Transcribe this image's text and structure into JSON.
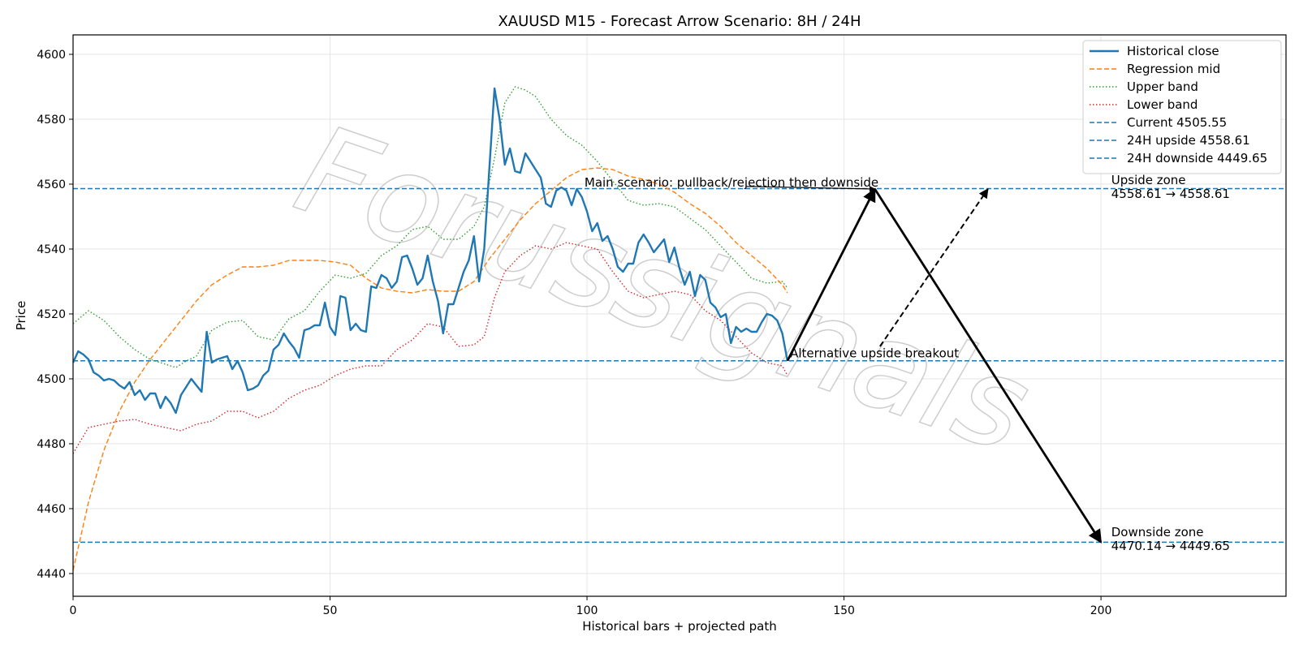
{
  "chart_data": {
    "type": "line",
    "title": "XAUUSD M15 - Forecast Arrow Scenario: 8H / 24H",
    "xlabel": "Historical bars + projected path",
    "ylabel": "Price",
    "xlim": [
      0,
      236
    ],
    "ylim": [
      4433,
      4606
    ],
    "xticks": [
      0,
      50,
      100,
      150,
      200
    ],
    "yticks": [
      4440,
      4460,
      4480,
      4500,
      4520,
      4540,
      4560,
      4580,
      4600
    ],
    "grid": true,
    "legend_position": "top-right",
    "watermark": "Forussignals",
    "series": [
      {
        "name": "Historical close",
        "style": "solid",
        "color": "#1f77b4",
        "x": [
          0,
          1,
          2,
          3,
          4,
          5,
          6,
          7,
          8,
          9,
          10,
          11,
          12,
          13,
          14,
          15,
          16,
          17,
          18,
          19,
          20,
          21,
          22,
          23,
          24,
          25,
          26,
          27,
          28,
          29,
          30,
          31,
          32,
          33,
          34,
          35,
          36,
          37,
          38,
          39,
          40,
          41,
          42,
          43,
          44,
          45,
          46,
          47,
          48,
          49,
          50,
          51,
          52,
          53,
          54,
          55,
          56,
          57,
          58,
          59,
          60,
          61,
          62,
          63,
          64,
          65,
          66,
          67,
          68,
          69,
          70,
          71,
          72,
          73,
          74,
          75,
          76,
          77,
          78,
          79,
          80,
          81,
          82,
          83,
          84,
          85,
          86,
          87,
          88,
          89,
          90,
          91,
          92,
          93,
          94,
          95,
          96,
          97,
          98,
          99,
          100,
          101,
          102,
          103,
          104,
          105,
          106,
          107,
          108,
          109,
          110,
          111,
          112,
          113,
          114,
          115,
          116,
          117,
          118,
          119,
          120,
          121,
          122,
          123,
          124,
          125,
          126,
          127,
          128,
          129,
          130,
          131,
          132,
          133,
          134,
          135,
          136,
          137,
          138,
          139
        ],
        "values": [
          4505,
          4508.5,
          4507.5,
          4506,
          4502,
          4501,
          4499.5,
          4500,
          4499.5,
          4498,
          4497,
          4499,
          4495,
          4496.5,
          4493.5,
          4495.5,
          4495.5,
          4491,
          4494.5,
          4492.5,
          4489.5,
          4495,
          4497.5,
          4500,
          4498,
          4496,
          4514.5,
          4505,
          4506,
          4506.5,
          4507,
          4503,
          4505.5,
          4502,
          4496.5,
          4497,
          4498,
          4501,
          4502.5,
          4509,
          4510.5,
          4514,
          4511.5,
          4509.5,
          4506.5,
          4515,
          4515.5,
          4516.5,
          4516.5,
          4523.5,
          4516,
          4513.5,
          4525.5,
          4525,
          4515,
          4517,
          4515,
          4514.5,
          4528.5,
          4528,
          4532,
          4531,
          4528,
          4530,
          4537.5,
          4538,
          4534,
          4529,
          4531,
          4538,
          4530,
          4524,
          4514,
          4523,
          4523,
          4528,
          4533,
          4536.5,
          4544,
          4530,
          4540,
          4565,
          4589.5,
          4580,
          4566,
          4571,
          4564,
          4563.5,
          4569.5,
          4567,
          4564.5,
          4562,
          4554,
          4553,
          4558,
          4559,
          4558,
          4553.5,
          4558.5,
          4556,
          4551.5,
          4545.5,
          4548,
          4542.5,
          4544,
          4540,
          4534.5,
          4533,
          4535.5,
          4535.5,
          4542,
          4544.5,
          4542,
          4539,
          4541,
          4543,
          4536,
          4540.5,
          4534,
          4529,
          4533,
          4525.5,
          4532,
          4530.5,
          4523.5,
          4522,
          4519,
          4520,
          4511,
          4516,
          4514.5,
          4515.5,
          4514.5,
          4514.5,
          4517.5,
          4520,
          4519.5,
          4518,
          4514,
          4505.55
        ]
      },
      {
        "name": "Regression mid",
        "style": "dashed",
        "color": "#ff7f0e",
        "x": [
          0,
          3,
          6,
          9,
          12,
          15,
          18,
          21,
          24,
          27,
          30,
          33,
          36,
          39,
          42,
          45,
          48,
          51,
          54,
          57,
          60,
          63,
          66,
          69,
          72,
          75,
          78,
          81,
          84,
          87,
          90,
          93,
          96,
          99,
          102,
          105,
          108,
          111,
          114,
          117,
          120,
          123,
          126,
          129,
          132,
          135,
          138,
          139
        ],
        "values": [
          4441,
          4462,
          4478,
          4490,
          4499,
          4506,
          4512,
          4518,
          4524,
          4529,
          4532,
          4534.5,
          4534.5,
          4535,
          4536.5,
          4536.5,
          4536.5,
          4536,
          4535,
          4531,
          4528,
          4527,
          4526.5,
          4527.5,
          4527,
          4527,
          4530,
          4537,
          4543,
          4549,
          4554,
          4558,
          4562,
          4564.5,
          4565,
          4564.5,
          4562.5,
          4561.5,
          4560,
          4557.5,
          4554,
          4551,
          4547,
          4542,
          4538,
          4534,
          4529,
          4526.5
        ]
      },
      {
        "name": "Upper band",
        "style": "dotted",
        "color": "#2ca02c",
        "x": [
          0,
          3,
          6,
          9,
          12,
          15,
          18,
          20,
          22,
          24,
          27,
          30,
          33,
          36,
          39,
          42,
          45,
          48,
          51,
          54,
          57,
          60,
          63,
          66,
          69,
          72,
          75,
          78,
          80,
          82,
          84,
          86,
          88,
          90,
          93,
          96,
          99,
          102,
          105,
          108,
          111,
          114,
          117,
          120,
          123,
          126,
          129,
          132,
          135,
          138,
          139
        ],
        "values": [
          4517,
          4521,
          4518,
          4513,
          4509,
          4506,
          4504.5,
          4503.5,
          4505.5,
          4507,
          4515,
          4517.5,
          4518,
          4513,
          4512,
          4518.5,
          4521,
          4527,
          4532,
          4531,
          4532.5,
          4538,
          4541,
          4546,
          4547,
          4543,
          4543,
          4547,
          4553,
          4568,
          4585,
          4590,
          4589,
          4587,
          4580,
          4575,
          4572,
          4567,
          4561,
          4555,
          4553.5,
          4554,
          4553,
          4549.5,
          4546,
          4541,
          4536,
          4531,
          4529.5,
          4530,
          4528
        ]
      },
      {
        "name": "Lower band",
        "style": "dotted",
        "color": "#d62728",
        "x": [
          0,
          3,
          6,
          9,
          12,
          15,
          18,
          21,
          24,
          27,
          30,
          33,
          36,
          39,
          42,
          45,
          48,
          51,
          54,
          57,
          60,
          63,
          66,
          69,
          72,
          75,
          78,
          80,
          82,
          84,
          87,
          90,
          93,
          96,
          99,
          102,
          105,
          108,
          111,
          114,
          117,
          120,
          123,
          126,
          129,
          132,
          135,
          138,
          139
        ],
        "values": [
          4477,
          4485,
          4486,
          4487,
          4487.5,
          4486,
          4485,
          4484,
          4486,
          4487,
          4490,
          4490,
          4488,
          4490,
          4494,
          4496.5,
          4498,
          4501,
          4503,
          4504,
          4504,
          4509,
          4512,
          4517,
          4516,
          4510,
          4510.5,
          4513,
          4525,
          4533,
          4538,
          4541,
          4540,
          4542,
          4541,
          4540,
          4533,
          4527,
          4525,
          4526,
          4527,
          4526,
          4521,
          4518,
          4513,
          4508,
          4505,
          4504,
          4501
        ]
      }
    ],
    "reference_lines": [
      {
        "name": "Current 4505.55",
        "y": 4505.55,
        "color": "#1f77b4"
      },
      {
        "name": "24H upside 4558.61",
        "y": 4558.61,
        "color": "#1f77b4"
      },
      {
        "name": "24H downside 4449.65",
        "y": 4449.65,
        "color": "#1f77b4"
      }
    ],
    "arrows": [
      {
        "id": "main-up",
        "from": [
          139,
          4505.55
        ],
        "to": [
          156,
          4558.5
        ],
        "style": "solid"
      },
      {
        "id": "main-down",
        "from": [
          156,
          4558.5
        ],
        "to": [
          200,
          4449.65
        ],
        "style": "solid"
      },
      {
        "id": "alt-up",
        "from": [
          157,
          4510
        ],
        "to": [
          178,
          4558.5
        ],
        "style": "dashed"
      },
      {
        "id": "main-label-pointer",
        "from": [
          131,
          4559.3
        ],
        "to": [
          156,
          4558.5
        ],
        "style": "thin"
      }
    ],
    "annotations": [
      {
        "id": "main",
        "text": "Main scenario: pullback/rejection then downside",
        "x": 99.5,
        "y": 4559.3
      },
      {
        "id": "alt",
        "text": "Alternative upside breakout",
        "x": 139.5,
        "y": 4506.6
      },
      {
        "id": "upside-title",
        "text": "Upside zone",
        "x": 202,
        "y": 4560
      },
      {
        "id": "upside-range",
        "text": "4558.61 → 4558.61",
        "x": 202,
        "y": 4555.7
      },
      {
        "id": "downside-title",
        "text": "Downside zone",
        "x": 202,
        "y": 4451.5
      },
      {
        "id": "downside-range",
        "text": "4470.14 → 4449.65",
        "x": 202,
        "y": 4447.2
      }
    ]
  }
}
